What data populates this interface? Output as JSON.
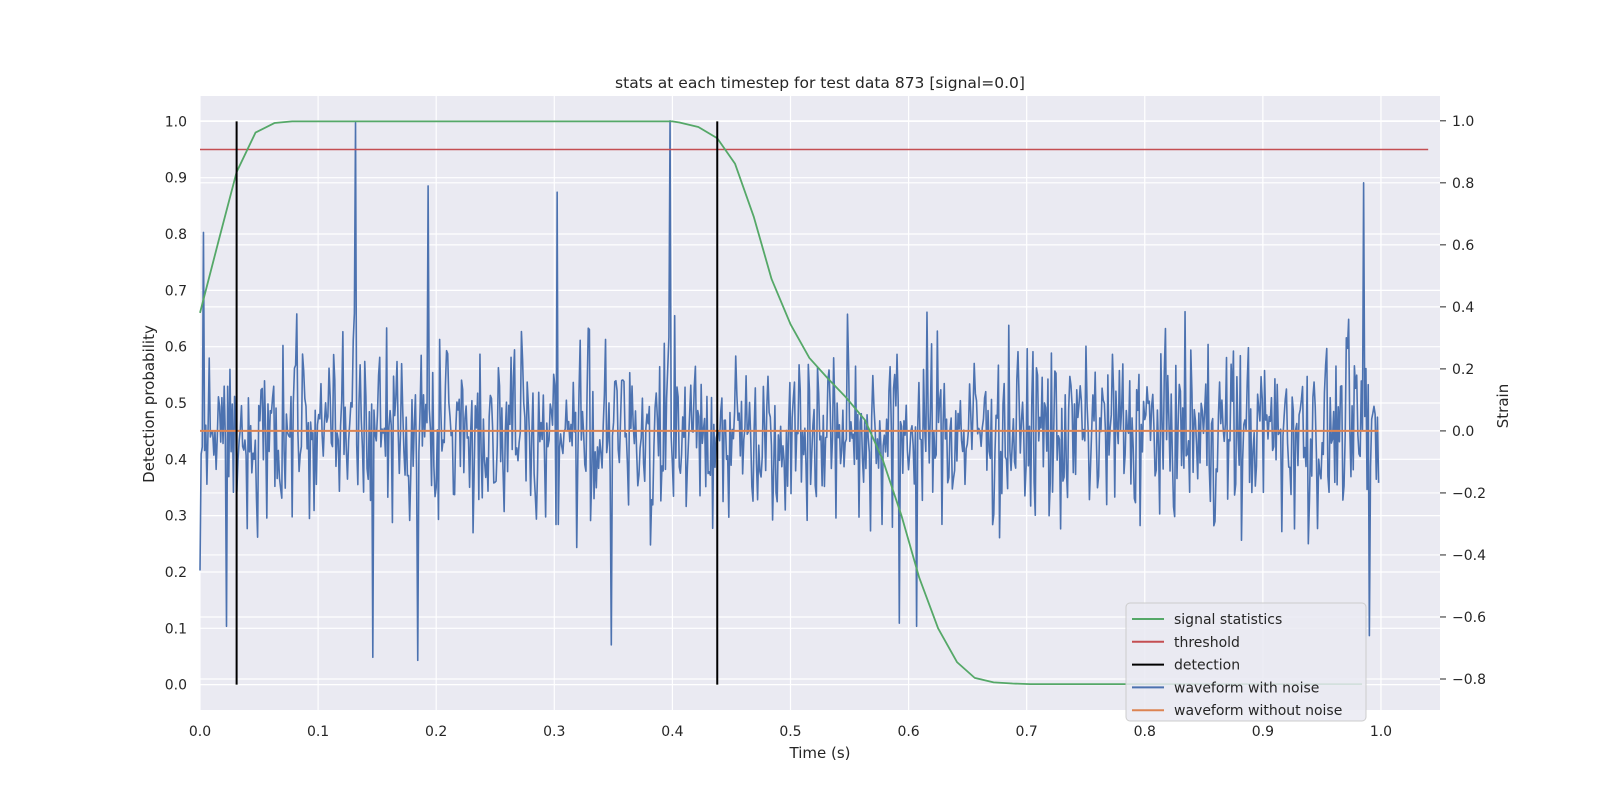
{
  "chart_data": {
    "type": "line",
    "title": "stats at each timestep for test data 873 [signal=0.0]",
    "xlabel": "Time (s)",
    "ylabel_left": "Detection probability",
    "ylabel_right": "Strain",
    "xlim": [
      0.0,
      1.05
    ],
    "ylim_left": [
      -0.045,
      1.045
    ],
    "ylim_right": [
      -0.9,
      1.08
    ],
    "grid": true,
    "legend_position": "lower-right",
    "x_ticks": [
      "0.0",
      "0.1",
      "0.2",
      "0.3",
      "0.4",
      "0.5",
      "0.6",
      "0.7",
      "0.8",
      "0.9",
      "1.0"
    ],
    "x_tick_values": [
      0.0,
      0.1,
      0.2,
      0.3,
      0.4,
      0.5,
      0.6,
      0.7,
      0.8,
      0.9,
      1.0
    ],
    "y_ticks_left": [
      "0.0",
      "0.1",
      "0.2",
      "0.3",
      "0.4",
      "0.5",
      "0.6",
      "0.7",
      "0.8",
      "0.9",
      "1.0"
    ],
    "y_tick_values_left": [
      0.0,
      0.1,
      0.2,
      0.3,
      0.4,
      0.5,
      0.6,
      0.7,
      0.8,
      0.9,
      1.0
    ],
    "y_ticks_right": [
      "−0.8",
      "−0.6",
      "−0.4",
      "−0.2",
      "0.0",
      "0.2",
      "0.4",
      "0.6",
      "0.8",
      "1.0"
    ],
    "y_tick_values_right": [
      -0.8,
      -0.6,
      -0.4,
      -0.2,
      0.0,
      0.2,
      0.4,
      0.6,
      0.8,
      1.0
    ],
    "colors": {
      "background": "#eaeaf2",
      "grid": "#ffffff",
      "signal_statistics": "#55a868",
      "threshold": "#c44e52",
      "detection": "#000000",
      "waveform_with_noise": "#4c72b0",
      "waveform_without_noise": "#dd8452"
    },
    "legend": [
      {
        "key": "signal_statistics",
        "label": "signal statistics"
      },
      {
        "key": "threshold",
        "label": "threshold"
      },
      {
        "key": "detection",
        "label": "detection"
      },
      {
        "key": "waveform_with_noise",
        "label": "waveform with noise"
      },
      {
        "key": "waveform_without_noise",
        "label": "waveform without noise"
      }
    ],
    "series": [
      {
        "name": "signal statistics",
        "axis": "left",
        "x": [
          0.0,
          0.016,
          0.031,
          0.047,
          0.063,
          0.078,
          0.094,
          0.2,
          0.3,
          0.4,
          0.406,
          0.422,
          0.438,
          0.453,
          0.469,
          0.484,
          0.5,
          0.516,
          0.531,
          0.547,
          0.563,
          0.578,
          0.594,
          0.609,
          0.625,
          0.641,
          0.656,
          0.672,
          0.688,
          0.703,
          0.8,
          0.9,
          0.984
        ],
        "y": [
          0.66,
          0.79,
          0.91,
          0.98,
          0.997,
          1.0,
          1.0,
          1.0,
          1.0,
          1.0,
          0.998,
          0.99,
          0.97,
          0.925,
          0.83,
          0.72,
          0.64,
          0.58,
          0.545,
          0.51,
          0.47,
          0.4,
          0.3,
          0.19,
          0.1,
          0.04,
          0.012,
          0.004,
          0.002,
          0.001,
          0.001,
          0.001,
          0.001
        ]
      },
      {
        "name": "threshold",
        "axis": "left",
        "x": [
          0.0,
          1.04
        ],
        "y": [
          0.95,
          0.95
        ]
      },
      {
        "name": "detection",
        "axis": "left",
        "segments": [
          {
            "x": 0.031,
            "y0": 0.0,
            "y1": 1.0
          },
          {
            "x": 0.438,
            "y0": 0.0,
            "y1": 1.0
          }
        ]
      },
      {
        "name": "waveform with noise",
        "axis": "right",
        "x_start": 0.0,
        "x_end": 0.998,
        "sample_count": 1024,
        "approx_std": 0.2,
        "spikes": [
          {
            "x": 0.0,
            "y": -0.45
          },
          {
            "x": 0.003,
            "y": 0.64
          },
          {
            "x": 0.022,
            "y": -0.63
          },
          {
            "x": 0.132,
            "y": 0.994
          },
          {
            "x": 0.146,
            "y": -0.73
          },
          {
            "x": 0.184,
            "y": -0.74
          },
          {
            "x": 0.193,
            "y": 0.79
          },
          {
            "x": 0.302,
            "y": 0.77
          },
          {
            "x": 0.348,
            "y": -0.69
          },
          {
            "x": 0.398,
            "y": 1.0
          },
          {
            "x": 0.592,
            "y": -0.62
          },
          {
            "x": 0.607,
            "y": -0.63
          },
          {
            "x": 0.985,
            "y": 0.8
          },
          {
            "x": 0.99,
            "y": -0.66
          }
        ]
      },
      {
        "name": "waveform without noise",
        "axis": "right",
        "x": [
          0.0,
          0.998
        ],
        "y": [
          0.0,
          0.0
        ]
      }
    ]
  }
}
